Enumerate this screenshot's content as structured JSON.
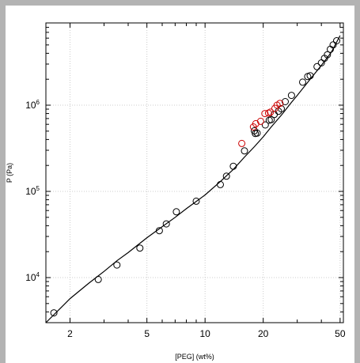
{
  "chart_data": {
    "type": "scatter",
    "title": "",
    "xlabel": "[PEG] (wt%)",
    "ylabel": "P (Pa)",
    "xscale": "log",
    "yscale": "log",
    "xlim": [
      1.5,
      52
    ],
    "ylim": [
      3000,
      9000000
    ],
    "grid": true,
    "x_tick_labels": [
      {
        "value": 2,
        "label": "2"
      },
      {
        "value": 5,
        "label": "5"
      },
      {
        "value": 10,
        "label": "10"
      },
      {
        "value": 20,
        "label": "20"
      },
      {
        "value": 50,
        "label": "50"
      }
    ],
    "y_tick_labels": [
      {
        "value": 10000,
        "base": "10",
        "exp": "4"
      },
      {
        "value": 100000,
        "base": "10",
        "exp": "5"
      },
      {
        "value": 1000000,
        "base": "10",
        "exp": "6"
      }
    ],
    "colors": {
      "black_series": "#000000",
      "red_series": "#cc0000",
      "curve": "#000000",
      "grid": "#cccccc"
    },
    "series": [
      {
        "marker": "open-circle",
        "color": "#000000",
        "points": [
          [
            1.65,
            3900
          ],
          [
            2.8,
            9500
          ],
          [
            3.5,
            14000
          ],
          [
            4.6,
            22000
          ],
          [
            5.8,
            35000
          ],
          [
            6.3,
            42000
          ],
          [
            7.1,
            58000
          ],
          [
            9.0,
            77000
          ],
          [
            12.0,
            120000
          ],
          [
            12.9,
            150000
          ],
          [
            14.0,
            196000
          ],
          [
            16.0,
            295000
          ],
          [
            18.2,
            470000
          ],
          [
            18.6,
            475000
          ],
          [
            18.0,
            505000
          ],
          [
            20.5,
            590000
          ],
          [
            21.5,
            670000
          ],
          [
            22.0,
            680000
          ],
          [
            22.8,
            780000
          ],
          [
            24.0,
            850000
          ],
          [
            24.8,
            910000
          ],
          [
            26.0,
            1100000
          ],
          [
            28.0,
            1300000
          ],
          [
            32.0,
            1850000
          ],
          [
            34.0,
            2150000
          ],
          [
            35.0,
            2200000
          ],
          [
            38.0,
            2800000
          ],
          [
            40.0,
            3100000
          ],
          [
            41.5,
            3500000
          ],
          [
            43.0,
            3850000
          ],
          [
            44.5,
            4450000
          ],
          [
            46.0,
            5000000
          ],
          [
            48.0,
            5600000
          ]
        ]
      },
      {
        "marker": "open-circle",
        "color": "#cc0000",
        "points": [
          [
            15.5,
            360000
          ],
          [
            17.8,
            560000
          ],
          [
            18.3,
            610000
          ],
          [
            19.4,
            650000
          ],
          [
            20.4,
            800000
          ],
          [
            21.3,
            810000
          ],
          [
            21.8,
            830000
          ],
          [
            23.0,
            920000
          ],
          [
            23.6,
            1000000
          ],
          [
            24.4,
            1050000
          ]
        ]
      }
    ],
    "fit_curve": [
      [
        1.5,
        3000
      ],
      [
        1.8,
        4500
      ],
      [
        2.0,
        5700
      ],
      [
        2.5,
        8600
      ],
      [
        3.0,
        11800
      ],
      [
        3.5,
        15700
      ],
      [
        4.0,
        19500
      ],
      [
        5.0,
        29000
      ],
      [
        6.0,
        39000
      ],
      [
        7.0,
        50000
      ],
      [
        8.0,
        63000
      ],
      [
        10.0,
        91000
      ],
      [
        12.0,
        130000
      ],
      [
        14.0,
        180000
      ],
      [
        16.0,
        250000
      ],
      [
        18.0,
        330000
      ],
      [
        20.0,
        430000
      ],
      [
        22.0,
        560000
      ],
      [
        25.0,
        780000
      ],
      [
        28.0,
        1080000
      ],
      [
        30.0,
        1300000
      ],
      [
        35.0,
        2000000
      ],
      [
        40.0,
        2900000
      ],
      [
        45.0,
        4100000
      ],
      [
        50.0,
        6400000
      ]
    ]
  }
}
